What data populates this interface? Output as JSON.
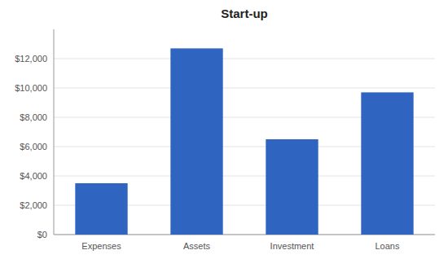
{
  "chart_data": {
    "type": "bar",
    "title": "Start-up",
    "categories": [
      "Expenses",
      "Assets",
      "Investment",
      "Loans"
    ],
    "values": [
      3500,
      12700,
      6500,
      9700
    ],
    "color": "#2F65C0",
    "ylim": [
      0,
      14000
    ],
    "yticks": [
      {
        "value": 0,
        "label": "$0"
      },
      {
        "value": 2000,
        "label": "$2,000"
      },
      {
        "value": 4000,
        "label": "$4,000"
      },
      {
        "value": 6000,
        "label": "$6,000"
      },
      {
        "value": 8000,
        "label": "$8,000"
      },
      {
        "value": 10000,
        "label": "$10,000"
      },
      {
        "value": 12000,
        "label": "$12,000"
      }
    ],
    "grid": true
  }
}
